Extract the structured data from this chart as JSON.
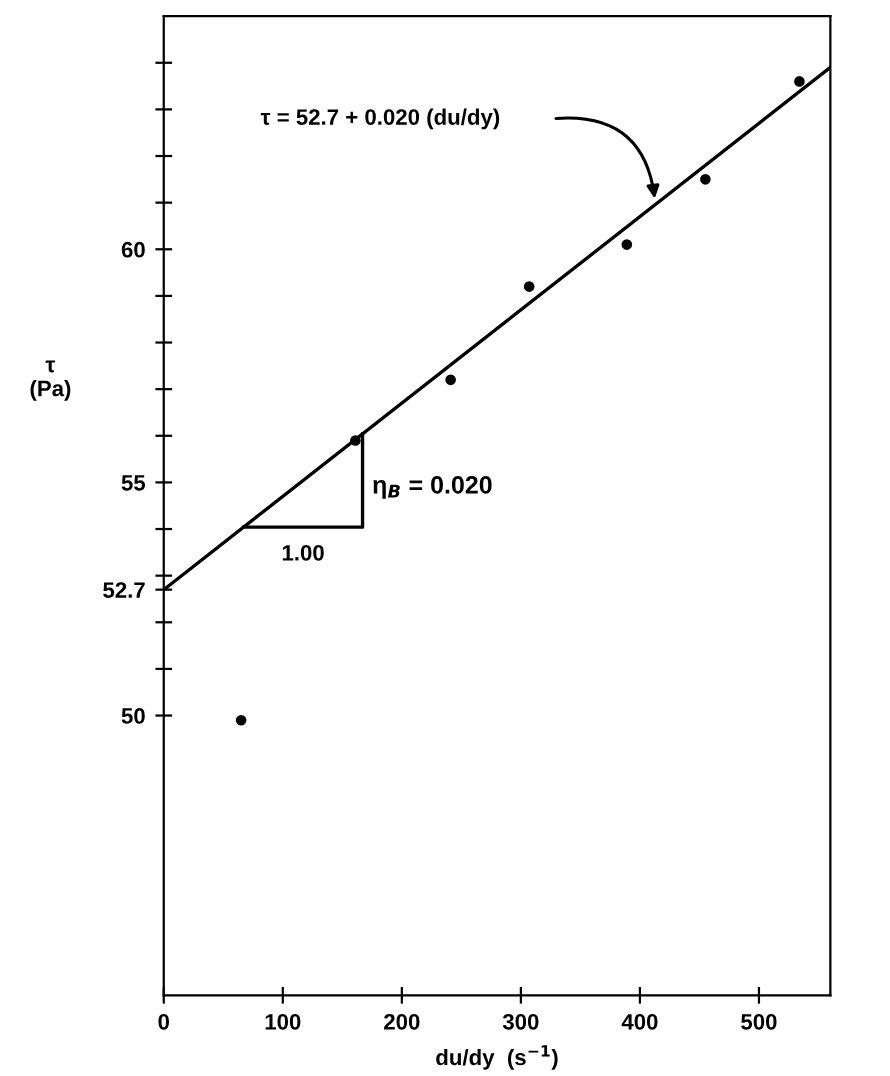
{
  "chart_data": {
    "type": "scatter",
    "xlabel": "du/dy  (s$^{−1}$)",
    "ylabel": "τ\n(Pa)",
    "xlim": [
      0,
      560
    ],
    "xticks": [
      0,
      100,
      200,
      300,
      400,
      500
    ],
    "ylim": [
      44,
      65
    ],
    "yticks": [
      {
        "value": 50,
        "label": "50"
      },
      {
        "value": 51,
        "label": null
      },
      {
        "value": 52,
        "label": null
      },
      {
        "value": 52.7,
        "label": "52.7"
      },
      {
        "value": 53,
        "label": null
      },
      {
        "value": 54,
        "label": null
      },
      {
        "value": 55,
        "label": "55"
      },
      {
        "value": 56,
        "label": null
      },
      {
        "value": 57,
        "label": null
      },
      {
        "value": 58,
        "label": null
      },
      {
        "value": 59,
        "label": null
      },
      {
        "value": 60,
        "label": "60"
      },
      {
        "value": 61,
        "label": null
      },
      {
        "value": 62,
        "label": null
      },
      {
        "value": 63,
        "label": null
      },
      {
        "value": 64,
        "label": null
      }
    ],
    "grid": false,
    "legend": false,
    "series": [
      {
        "marker": "circle",
        "color": "#000000",
        "x": [
          65,
          161,
          241,
          307,
          389,
          455,
          534
        ],
        "values": [
          49.9,
          55.9,
          57.2,
          59.2,
          60.1,
          61.5,
          63.6
        ]
      },
      {
        "type": "line",
        "color": "#000000",
        "x": [
          0,
          560
        ],
        "values": [
          52.7,
          63.9
        ]
      },
      {
        "type": "line",
        "color": "#000000",
        "x": [
          67,
          167,
          167
        ],
        "values": [
          54.04,
          54.04,
          56.04
        ]
      }
    ],
    "annotations": [
      "τ = 52.7 + 0.020 (du/dy)",
      "η$_{B}$ = 0.020",
      "1.00"
    ]
  }
}
